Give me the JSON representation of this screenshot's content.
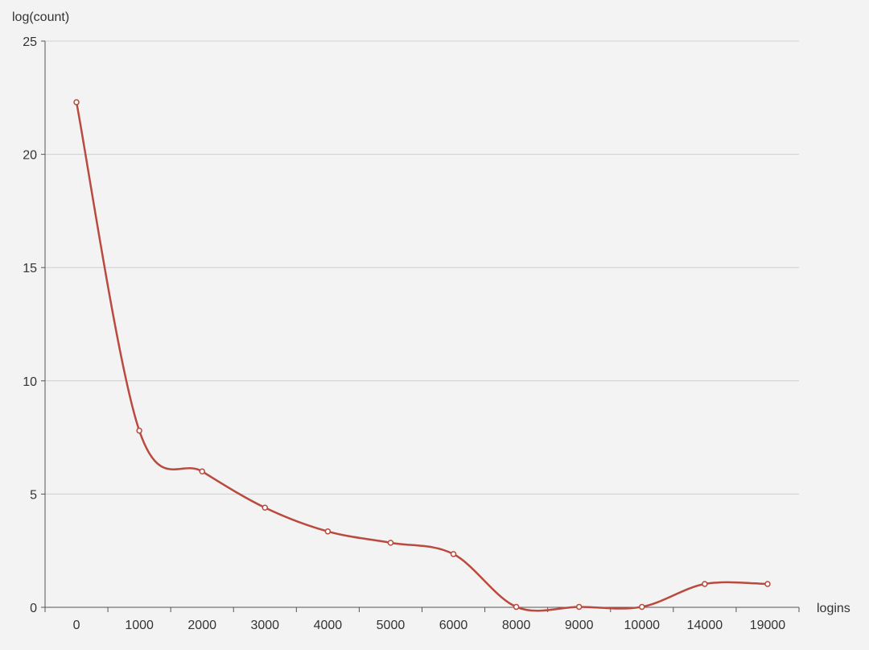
{
  "chart_data": {
    "type": "line",
    "xlabel": "logins",
    "ylabel": "log(count)",
    "categories": [
      "0",
      "1000",
      "2000",
      "3000",
      "4000",
      "5000",
      "6000",
      "8000",
      "9000",
      "10000",
      "14000",
      "19000"
    ],
    "series": [
      {
        "values": [
          22.3,
          7.8,
          6.0,
          4.4,
          3.35,
          2.85,
          2.35,
          0.02,
          0.02,
          0.02,
          1.03,
          1.03
        ],
        "color": "#b94a3f",
        "smooth": true,
        "marker": "circle"
      }
    ],
    "ylim": [
      0,
      25
    ],
    "yticks": [
      0,
      5,
      10,
      15,
      20,
      25
    ],
    "grid": true,
    "legend": "none",
    "colors": {
      "background": "#f3f3f3",
      "grid": "#d0d0d0",
      "axis": "#555555",
      "text": "#333333"
    }
  }
}
